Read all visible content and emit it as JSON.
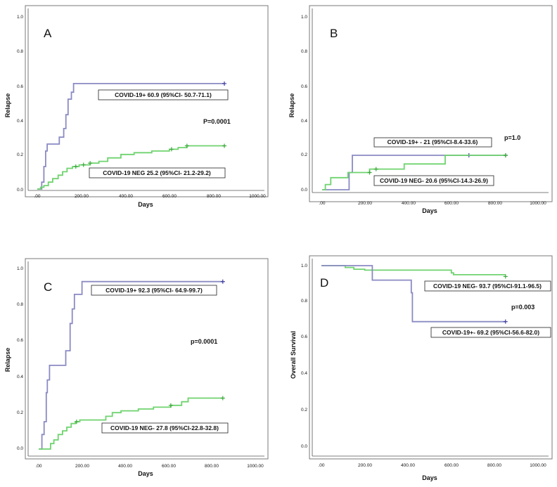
{
  "figure": {
    "colors": {
      "positive": "#8a8ac4",
      "negative": "#6fd36f",
      "censor_neg": "#3aa83a",
      "censor_pos": "#3a3aa0",
      "frame": "#7a7a7a"
    }
  },
  "chart_data": [
    {
      "type": "line",
      "panel": "A",
      "xlabel": "Days",
      "ylabel": "Relapse",
      "xlim": [
        0,
        1000
      ],
      "ylim": [
        0,
        1.0
      ],
      "x_ticks": [
        ".00",
        "200.00",
        "400.00",
        "600.00",
        "800.00",
        "1000.00"
      ],
      "y_ticks": [
        "0.0",
        "0.2",
        "0.4",
        "0.6",
        "0.8",
        "1.0"
      ],
      "p_value": "P=0.0001",
      "series": [
        {
          "name": "COVID-19 +",
          "label": "COVID-19+ 60.9 (95%CI- 50.7-71.1)",
          "color": "#8a8ac4",
          "points": [
            [
              0,
              0
            ],
            [
              20,
              0
            ],
            [
              20,
              0.04
            ],
            [
              30,
              0.04
            ],
            [
              30,
              0.13
            ],
            [
              38,
              0.13
            ],
            [
              38,
              0.22
            ],
            [
              45,
              0.22
            ],
            [
              45,
              0.26
            ],
            [
              100,
              0.26
            ],
            [
              100,
              0.3
            ],
            [
              120,
              0.3
            ],
            [
              120,
              0.35
            ],
            [
              130,
              0.35
            ],
            [
              130,
              0.43
            ],
            [
              140,
              0.43
            ],
            [
              140,
              0.52
            ],
            [
              155,
              0.52
            ],
            [
              155,
              0.56
            ],
            [
              165,
              0.56
            ],
            [
              165,
              0.61
            ],
            [
              850,
              0.61
            ]
          ],
          "censor": [
            [
              850,
              0.61
            ]
          ]
        },
        {
          "name": "COVID-19 NEG",
          "label": "COVID-19 NEG 25.2 (95%CI- 21.2-29.2)",
          "color": "#6fd36f",
          "points": [
            [
              0,
              0
            ],
            [
              15,
              0
            ],
            [
              15,
              0.01
            ],
            [
              30,
              0.01
            ],
            [
              30,
              0.02
            ],
            [
              50,
              0.02
            ],
            [
              50,
              0.04
            ],
            [
              70,
              0.04
            ],
            [
              70,
              0.06
            ],
            [
              95,
              0.06
            ],
            [
              95,
              0.08
            ],
            [
              115,
              0.08
            ],
            [
              115,
              0.1
            ],
            [
              135,
              0.1
            ],
            [
              135,
              0.12
            ],
            [
              160,
              0.12
            ],
            [
              160,
              0.13
            ],
            [
              190,
              0.13
            ],
            [
              190,
              0.14
            ],
            [
              240,
              0.14
            ],
            [
              240,
              0.15
            ],
            [
              280,
              0.15
            ],
            [
              280,
              0.16
            ],
            [
              320,
              0.16
            ],
            [
              320,
              0.18
            ],
            [
              380,
              0.18
            ],
            [
              380,
              0.2
            ],
            [
              440,
              0.2
            ],
            [
              440,
              0.21
            ],
            [
              520,
              0.21
            ],
            [
              520,
              0.22
            ],
            [
              600,
              0.22
            ],
            [
              600,
              0.23
            ],
            [
              640,
              0.23
            ],
            [
              640,
              0.24
            ],
            [
              680,
              0.24
            ],
            [
              680,
              0.25
            ],
            [
              850,
              0.25
            ]
          ],
          "censor": [
            [
              175,
              0.13
            ],
            [
              210,
              0.14
            ],
            [
              240,
              0.15
            ],
            [
              610,
              0.23
            ],
            [
              680,
              0.25
            ],
            [
              850,
              0.25
            ]
          ]
        }
      ]
    },
    {
      "type": "line",
      "panel": "B",
      "xlabel": "Days",
      "ylabel": "Relapse",
      "xlim": [
        0,
        1000
      ],
      "ylim": [
        0,
        1.0
      ],
      "x_ticks": [
        ".00",
        "200.00",
        "400.00",
        "600.00",
        "800.00",
        "1000.00"
      ],
      "y_ticks": [
        "0.0",
        "0.2",
        "0.4",
        "0.6",
        "0.8",
        "1.0"
      ],
      "p_value": "p=1.0",
      "series": [
        {
          "name": "COVID-19 +",
          "label": "COVID-19+ - 21 (95%CI-8.4-33.6)",
          "color": "#8a8ac4",
          "points": [
            [
              0,
              0
            ],
            [
              125,
              0
            ],
            [
              125,
              0.1
            ],
            [
              140,
              0.1
            ],
            [
              140,
              0.2
            ],
            [
              850,
              0.2
            ]
          ],
          "censor": [
            [
              680,
              0.2
            ],
            [
              850,
              0.2
            ]
          ]
        },
        {
          "name": "COVID-19 NEG",
          "label": "COVID-19 NEG- 20.6 (95%CI-14.3-26.9)",
          "color": "#6fd36f",
          "points": [
            [
              0,
              0
            ],
            [
              15,
              0
            ],
            [
              15,
              0.03
            ],
            [
              40,
              0.03
            ],
            [
              40,
              0.07
            ],
            [
              120,
              0.07
            ],
            [
              120,
              0.1
            ],
            [
              220,
              0.1
            ],
            [
              220,
              0.12
            ],
            [
              380,
              0.12
            ],
            [
              380,
              0.15
            ],
            [
              570,
              0.15
            ],
            [
              570,
              0.2
            ],
            [
              850,
              0.2
            ]
          ],
          "censor": [
            [
              220,
              0.1
            ],
            [
              250,
              0.12
            ],
            [
              850,
              0.2
            ]
          ]
        }
      ]
    },
    {
      "type": "line",
      "panel": "C",
      "xlabel": "Days",
      "ylabel": "Relapse",
      "xlim": [
        0,
        1000
      ],
      "ylim": [
        0,
        1.0
      ],
      "x_ticks": [
        ".00",
        "200.00",
        "400.00",
        "600.00",
        "800.00",
        "1000.00"
      ],
      "y_ticks": [
        "0.0",
        "0.2",
        "0.4",
        "0.6",
        "0.8",
        "1.0"
      ],
      "p_value": "p=0.0001",
      "series": [
        {
          "name": "COVID-19 +",
          "label": "COVID-19+ 92.3 (95%CI- 64.9-99.7)",
          "color": "#8a8ac4",
          "points": [
            [
              0,
              0
            ],
            [
              15,
              0
            ],
            [
              15,
              0.08
            ],
            [
              25,
              0.08
            ],
            [
              25,
              0.15
            ],
            [
              35,
              0.15
            ],
            [
              35,
              0.31
            ],
            [
              40,
              0.31
            ],
            [
              40,
              0.38
            ],
            [
              50,
              0.38
            ],
            [
              50,
              0.46
            ],
            [
              125,
              0.46
            ],
            [
              125,
              0.54
            ],
            [
              145,
              0.54
            ],
            [
              145,
              0.69
            ],
            [
              155,
              0.69
            ],
            [
              155,
              0.77
            ],
            [
              165,
              0.77
            ],
            [
              165,
              0.85
            ],
            [
              200,
              0.85
            ],
            [
              200,
              0.92
            ],
            [
              850,
              0.92
            ]
          ],
          "censor": [
            [
              850,
              0.92
            ]
          ]
        },
        {
          "name": "COVID-19 NEG",
          "label": "COVID-19 NEG- 27.8 (95%CI-22.8-32.8)",
          "color": "#6fd36f",
          "points": [
            [
              0,
              0
            ],
            [
              55,
              0
            ],
            [
              55,
              0.03
            ],
            [
              70,
              0.03
            ],
            [
              70,
              0.05
            ],
            [
              90,
              0.05
            ],
            [
              90,
              0.08
            ],
            [
              110,
              0.08
            ],
            [
              110,
              0.1
            ],
            [
              130,
              0.1
            ],
            [
              130,
              0.12
            ],
            [
              150,
              0.12
            ],
            [
              150,
              0.14
            ],
            [
              170,
              0.14
            ],
            [
              170,
              0.15
            ],
            [
              190,
              0.15
            ],
            [
              190,
              0.16
            ],
            [
              310,
              0.16
            ],
            [
              310,
              0.18
            ],
            [
              340,
              0.18
            ],
            [
              340,
              0.2
            ],
            [
              380,
              0.2
            ],
            [
              380,
              0.21
            ],
            [
              460,
              0.21
            ],
            [
              460,
              0.22
            ],
            [
              530,
              0.22
            ],
            [
              530,
              0.23
            ],
            [
              610,
              0.23
            ],
            [
              610,
              0.24
            ],
            [
              660,
              0.24
            ],
            [
              660,
              0.26
            ],
            [
              690,
              0.26
            ],
            [
              690,
              0.28
            ],
            [
              850,
              0.28
            ]
          ],
          "censor": [
            [
              175,
              0.15
            ],
            [
              610,
              0.24
            ],
            [
              850,
              0.28
            ]
          ]
        }
      ]
    },
    {
      "type": "line",
      "panel": "D",
      "xlabel": "Days",
      "ylabel": "Overall Survival",
      "xlim": [
        0,
        1000
      ],
      "ylim": [
        0,
        1.0
      ],
      "x_ticks": [
        ".00",
        "200.00",
        "400.00",
        "600.00",
        "800.00",
        "1000.00"
      ],
      "y_ticks": [
        "0.0",
        "0.2",
        "0.4",
        "0.6",
        "0.8",
        "1.0"
      ],
      "p_value": "p=0.003",
      "series": [
        {
          "name": "COVID-19 NEG",
          "label": "COVID-19 NEG- 93.7 (95%CI-91.1-96.5)",
          "color": "#6fd36f",
          "points": [
            [
              0,
              1.0
            ],
            [
              110,
              1.0
            ],
            [
              110,
              0.99
            ],
            [
              150,
              0.99
            ],
            [
              150,
              0.98
            ],
            [
              200,
              0.98
            ],
            [
              200,
              0.975
            ],
            [
              600,
              0.975
            ],
            [
              600,
              0.96
            ],
            [
              610,
              0.96
            ],
            [
              610,
              0.95
            ],
            [
              850,
              0.95
            ]
          ],
          "censor": [
            [
              850,
              0.94
            ]
          ]
        },
        {
          "name": "COVID-19 +",
          "label": "COVID-19+- 69.2 (95%CI-56.6-82.0)",
          "color": "#8a8ac4",
          "points": [
            [
              0,
              1.0
            ],
            [
              235,
              1.0
            ],
            [
              235,
              0.92
            ],
            [
              415,
              0.92
            ],
            [
              415,
              0.85
            ],
            [
              420,
              0.85
            ],
            [
              420,
              0.69
            ],
            [
              850,
              0.69
            ]
          ],
          "censor": [
            [
              850,
              0.69
            ]
          ]
        }
      ]
    }
  ]
}
